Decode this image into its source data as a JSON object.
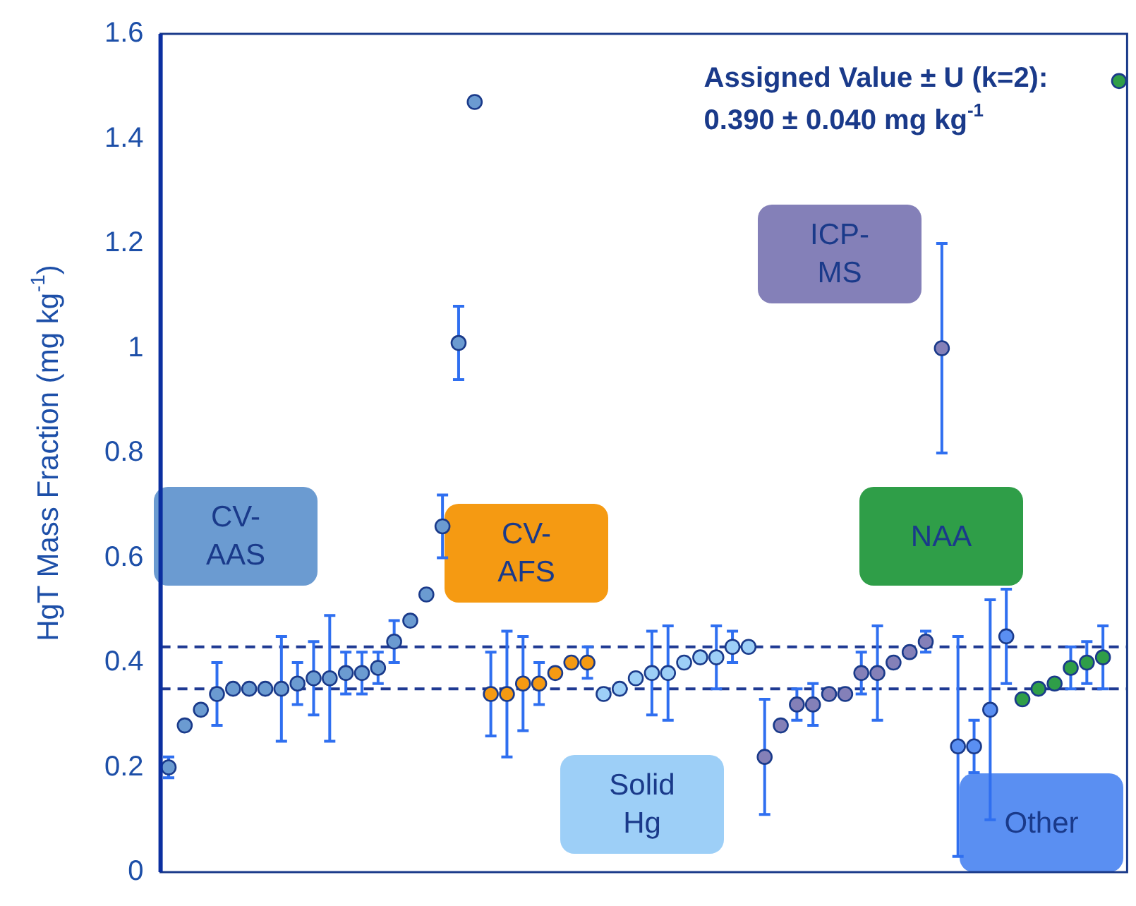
{
  "chart_data": {
    "type": "scatter",
    "ylabel": "HgT Mass Fraction (mg kg$^{-1}$)",
    "annotations": [
      "Assigned Value ± U (k=2):",
      "0.390 ± 0.040 mg kg$^{-1}$"
    ],
    "categories": [
      null,
      null,
      null,
      null,
      null,
      null,
      null,
      null,
      null,
      null,
      null,
      null,
      null,
      null,
      null,
      null,
      null,
      null,
      null,
      null,
      null,
      null,
      null,
      null,
      null,
      null,
      null,
      null,
      null,
      null,
      null,
      null,
      null,
      null,
      null,
      null,
      null,
      null,
      null,
      null,
      null,
      null,
      null,
      null,
      null,
      null,
      null,
      null,
      null,
      null,
      null,
      null,
      null,
      null,
      null,
      null,
      null,
      null,
      null,
      null
    ],
    "series": [
      {
        "name": "CV-AAS",
        "color": "#6b9bd1",
        "values": [
          0.2,
          0.28,
          0.31,
          0.34,
          0.35,
          0.35,
          0.35,
          0.35,
          0.36,
          0.37,
          0.37,
          0.38,
          0.38,
          0.39,
          0.44,
          0.48,
          0.53,
          0.66,
          1.01,
          1.47,
          null,
          null,
          null,
          null,
          null,
          null,
          null,
          null,
          null,
          null,
          null,
          null,
          null,
          null,
          null,
          null,
          null,
          null,
          null,
          null,
          null,
          null,
          null,
          null,
          null,
          null,
          null,
          null,
          null,
          null,
          null,
          null,
          null,
          null,
          null,
          null,
          null,
          null,
          null,
          null
        ],
        "errors": [
          0.02,
          null,
          null,
          0.06,
          null,
          null,
          null,
          0.1,
          0.04,
          0.07,
          0.12,
          0.04,
          0.04,
          0.03,
          0.04,
          null,
          null,
          0.06,
          0.07,
          null,
          null,
          null,
          null,
          null,
          null,
          null,
          null,
          null,
          null,
          null,
          null,
          null,
          null,
          null,
          null,
          null,
          null,
          null,
          null,
          null,
          null,
          null,
          null,
          null,
          null,
          null,
          null,
          null,
          null,
          null,
          null,
          null,
          null,
          null,
          null,
          null,
          null,
          null,
          null,
          null
        ]
      },
      {
        "name": "CV-AFS",
        "color": "#f59a12",
        "values": [
          null,
          null,
          null,
          null,
          null,
          null,
          null,
          null,
          null,
          null,
          null,
          null,
          null,
          null,
          null,
          null,
          null,
          null,
          null,
          null,
          0.34,
          0.34,
          0.36,
          0.36,
          0.38,
          0.4,
          0.4,
          null,
          null,
          null,
          null,
          null,
          null,
          null,
          null,
          null,
          null,
          null,
          null,
          null,
          null,
          null,
          null,
          null,
          null,
          null,
          null,
          null,
          null,
          null,
          null,
          null,
          null,
          null,
          null,
          null,
          null,
          null,
          null,
          null
        ],
        "errors": [
          null,
          null,
          null,
          null,
          null,
          null,
          null,
          null,
          null,
          null,
          null,
          null,
          null,
          null,
          null,
          null,
          null,
          null,
          null,
          null,
          0.08,
          0.12,
          0.09,
          0.04,
          null,
          null,
          0.03,
          null,
          null,
          null,
          null,
          null,
          null,
          null,
          null,
          null,
          null,
          null,
          null,
          null,
          null,
          null,
          null,
          null,
          null,
          null,
          null,
          null,
          null,
          null,
          null,
          null,
          null,
          null,
          null,
          null,
          null,
          null,
          null,
          null
        ]
      },
      {
        "name": "Solid Hg",
        "color": "#9dcff7",
        "values": [
          null,
          null,
          null,
          null,
          null,
          null,
          null,
          null,
          null,
          null,
          null,
          null,
          null,
          null,
          null,
          null,
          null,
          null,
          null,
          null,
          null,
          null,
          null,
          null,
          null,
          null,
          null,
          0.34,
          0.35,
          0.37,
          0.38,
          0.38,
          0.4,
          0.41,
          0.41,
          0.43,
          0.43,
          null,
          null,
          null,
          null,
          null,
          null,
          null,
          null,
          null,
          null,
          null,
          null,
          null,
          null,
          null,
          null,
          null,
          null,
          null,
          null,
          null,
          null,
          null
        ],
        "errors": [
          null,
          null,
          null,
          null,
          null,
          null,
          null,
          null,
          null,
          null,
          null,
          null,
          null,
          null,
          null,
          null,
          null,
          null,
          null,
          null,
          null,
          null,
          null,
          null,
          null,
          null,
          null,
          null,
          null,
          null,
          0.08,
          0.09,
          null,
          null,
          0.06,
          0.03,
          null,
          null,
          null,
          null,
          null,
          null,
          null,
          null,
          null,
          null,
          null,
          null,
          null,
          null,
          null,
          null,
          null,
          null,
          null,
          null,
          null,
          null,
          null,
          null
        ]
      },
      {
        "name": "ICP-MS",
        "color": "#8480b8",
        "values": [
          null,
          null,
          null,
          null,
          null,
          null,
          null,
          null,
          null,
          null,
          null,
          null,
          null,
          null,
          null,
          null,
          null,
          null,
          null,
          null,
          null,
          null,
          null,
          null,
          null,
          null,
          null,
          null,
          null,
          null,
          null,
          null,
          null,
          null,
          null,
          null,
          null,
          0.22,
          0.28,
          0.32,
          0.32,
          0.34,
          0.34,
          0.38,
          0.38,
          0.4,
          0.42,
          0.44,
          1.0,
          null,
          null,
          null,
          null,
          null,
          null,
          null,
          null,
          null,
          null,
          null
        ],
        "errors": [
          null,
          null,
          null,
          null,
          null,
          null,
          null,
          null,
          null,
          null,
          null,
          null,
          null,
          null,
          null,
          null,
          null,
          null,
          null,
          null,
          null,
          null,
          null,
          null,
          null,
          null,
          null,
          null,
          null,
          null,
          null,
          null,
          null,
          null,
          null,
          null,
          null,
          0.11,
          null,
          0.03,
          0.04,
          null,
          null,
          0.04,
          0.09,
          null,
          null,
          0.02,
          0.2,
          null,
          null,
          null,
          null,
          null,
          null,
          null,
          null,
          null,
          null,
          null
        ]
      },
      {
        "name": "Other",
        "color": "#5a8ff2",
        "values": [
          null,
          null,
          null,
          null,
          null,
          null,
          null,
          null,
          null,
          null,
          null,
          null,
          null,
          null,
          null,
          null,
          null,
          null,
          null,
          null,
          null,
          null,
          null,
          null,
          null,
          null,
          null,
          null,
          null,
          null,
          null,
          null,
          null,
          null,
          null,
          null,
          null,
          null,
          null,
          null,
          null,
          null,
          null,
          null,
          null,
          null,
          null,
          null,
          null,
          0.24,
          0.24,
          0.31,
          0.45,
          null,
          null,
          null,
          null,
          null,
          null,
          null
        ],
        "errors": [
          null,
          null,
          null,
          null,
          null,
          null,
          null,
          null,
          null,
          null,
          null,
          null,
          null,
          null,
          null,
          null,
          null,
          null,
          null,
          null,
          null,
          null,
          null,
          null,
          null,
          null,
          null,
          null,
          null,
          null,
          null,
          null,
          null,
          null,
          null,
          null,
          null,
          null,
          null,
          null,
          null,
          null,
          null,
          null,
          null,
          null,
          null,
          null,
          null,
          0.21,
          0.05,
          0.21,
          0.09,
          null,
          null,
          null,
          null,
          null,
          null,
          null
        ]
      },
      {
        "name": "NAA",
        "color": "#2f9e48",
        "values": [
          null,
          null,
          null,
          null,
          null,
          null,
          null,
          null,
          null,
          null,
          null,
          null,
          null,
          null,
          null,
          null,
          null,
          null,
          null,
          null,
          null,
          null,
          null,
          null,
          null,
          null,
          null,
          null,
          null,
          null,
          null,
          null,
          null,
          null,
          null,
          null,
          null,
          null,
          null,
          null,
          null,
          null,
          null,
          null,
          null,
          null,
          null,
          null,
          null,
          null,
          null,
          null,
          null,
          0.33,
          0.35,
          0.36,
          0.39,
          0.4,
          0.41,
          1.51
        ],
        "errors": [
          null,
          null,
          null,
          null,
          null,
          null,
          null,
          null,
          null,
          null,
          null,
          null,
          null,
          null,
          null,
          null,
          null,
          null,
          null,
          null,
          null,
          null,
          null,
          null,
          null,
          null,
          null,
          null,
          null,
          null,
          null,
          null,
          null,
          null,
          null,
          null,
          null,
          null,
          null,
          null,
          null,
          null,
          null,
          null,
          null,
          null,
          null,
          null,
          null,
          null,
          null,
          null,
          null,
          null,
          null,
          null,
          0.04,
          0.04,
          0.06,
          null
        ]
      }
    ],
    "ylim": [
      0,
      1.6
    ],
    "yticks": [
      0,
      0.2,
      0.4,
      0.6,
      0.8,
      1,
      1.2,
      1.4,
      1.6
    ],
    "ref_lines": [
      {
        "axis": "y",
        "value": 0.35,
        "color": "#1f3a93",
        "line_style": "dashed"
      },
      {
        "axis": "y",
        "value": 0.43,
        "color": "#1f3a93",
        "line_style": "dashed"
      }
    ],
    "grid": false,
    "legend": false,
    "tick_labels": "y",
    "marker": "circle"
  }
}
